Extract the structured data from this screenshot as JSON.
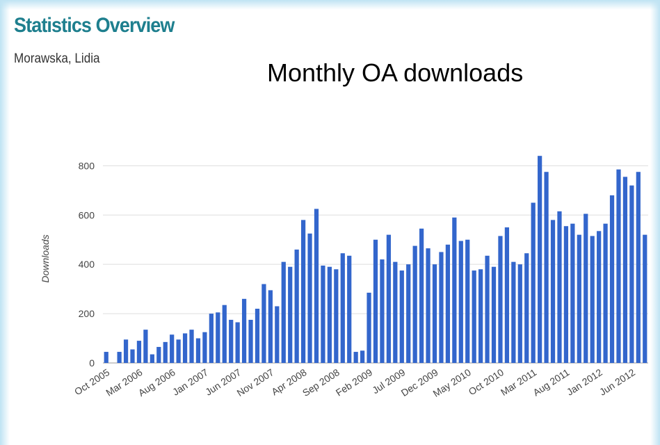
{
  "header": {
    "title": "Statistics Overview",
    "subtitle": "Morawska, Lidia"
  },
  "chart_data": {
    "type": "bar",
    "title": "Monthly OA downloads",
    "y_label": "Downloads",
    "color": "#3366cc",
    "grid": true,
    "ylim": [
      0,
      880
    ],
    "yticks": [
      0,
      200,
      400,
      600,
      800
    ],
    "categories": [
      "Oct 2005",
      null,
      null,
      null,
      null,
      "Mar 2006",
      null,
      null,
      null,
      null,
      "Aug 2006",
      null,
      null,
      null,
      null,
      "Jan 2007",
      null,
      null,
      null,
      null,
      "Jun 2007",
      null,
      null,
      null,
      null,
      "Nov 2007",
      null,
      null,
      null,
      null,
      "Apr 2008",
      null,
      null,
      null,
      null,
      "Sep 2008",
      null,
      null,
      null,
      null,
      "Feb 2009",
      null,
      null,
      null,
      null,
      "Jul 2009",
      null,
      null,
      null,
      null,
      "Dec 2009",
      null,
      null,
      null,
      null,
      "May 2010",
      null,
      null,
      null,
      null,
      "Oct 2010",
      null,
      null,
      null,
      null,
      "Mar 2011",
      null,
      null,
      null,
      null,
      "Aug 2011",
      null,
      null,
      null,
      null,
      "Jan 2012",
      null,
      null,
      null,
      null,
      "Jun 2012",
      null,
      null
    ],
    "values": [
      45,
      0,
      45,
      95,
      55,
      90,
      135,
      35,
      65,
      85,
      115,
      95,
      120,
      135,
      100,
      125,
      200,
      205,
      235,
      175,
      165,
      260,
      175,
      220,
      320,
      295,
      230,
      410,
      390,
      460,
      580,
      525,
      625,
      395,
      390,
      380,
      445,
      435,
      45,
      50,
      285,
      500,
      420,
      520,
      410,
      375,
      400,
      475,
      545,
      465,
      400,
      450,
      480,
      590,
      495,
      500,
      375,
      380,
      435,
      390,
      515,
      550,
      410,
      400,
      445,
      650,
      840,
      775,
      580,
      615,
      555,
      565,
      520,
      605,
      515,
      535,
      565,
      680,
      785,
      755,
      720,
      775,
      520
    ]
  }
}
